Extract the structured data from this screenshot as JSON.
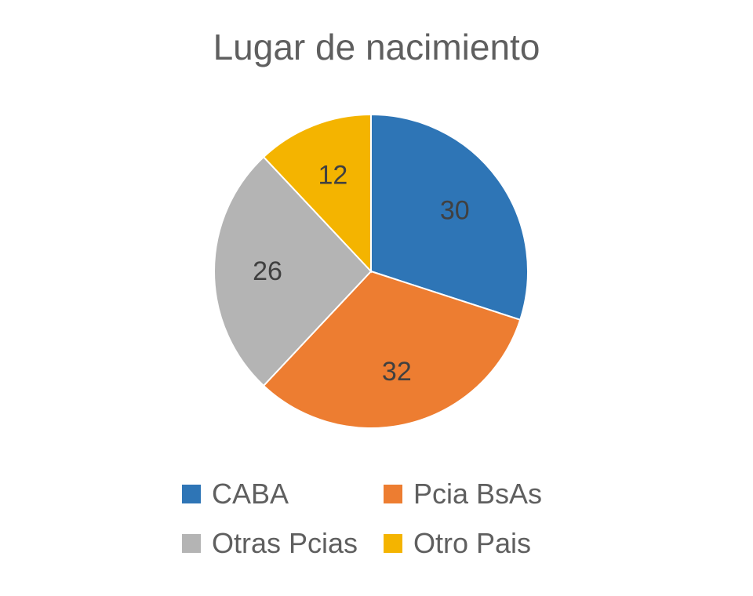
{
  "chart_data": {
    "type": "pie",
    "title": "Lugar de nacimiento",
    "categories": [
      "CABA",
      "Pcia BsAs",
      "Otras Pcias",
      "Otro Pais"
    ],
    "values": [
      30,
      32,
      26,
      12
    ],
    "colors": [
      "#2e75b6",
      "#ed7d31",
      "#b4b4b4",
      "#f4b400"
    ],
    "data_labels": [
      "30",
      "32",
      "26",
      "12"
    ],
    "legend_position": "bottom"
  }
}
